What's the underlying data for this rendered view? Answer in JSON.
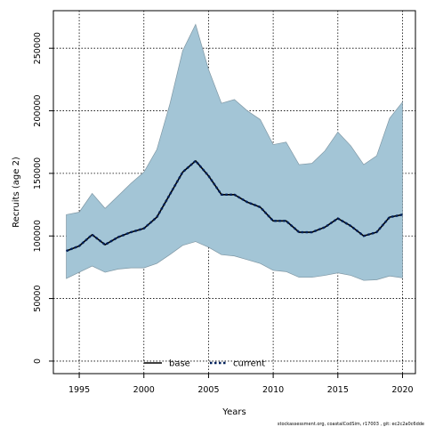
{
  "chart_data": {
    "type": "area",
    "xlabel": "Years",
    "ylabel": "Recruits (age 2)",
    "xlim": [
      1993,
      2021
    ],
    "ylim": [
      -10000,
      280000
    ],
    "x_ticks": [
      1995,
      2000,
      2005,
      2010,
      2015,
      2020
    ],
    "x_tick_labels": [
      "1995",
      "2000",
      "2005",
      "2010",
      "2015",
      "2020"
    ],
    "y_ticks": [
      0,
      50000,
      100000,
      150000,
      200000,
      250000
    ],
    "y_tick_labels": [
      "0",
      "50000",
      "100000",
      "150000",
      "200000",
      "250000"
    ],
    "grid": true,
    "legend_position": "bottom-center",
    "x": [
      1994,
      1995,
      1996,
      1997,
      1998,
      1999,
      2000,
      2001,
      2002,
      2003,
      2004,
      2005,
      2006,
      2007,
      2008,
      2009,
      2010,
      2011,
      2012,
      2013,
      2014,
      2015,
      2016,
      2017,
      2018,
      2019,
      2020
    ],
    "band": {
      "upper": [
        117000,
        119000,
        134000,
        122000,
        132000,
        142000,
        151000,
        169000,
        205000,
        248000,
        269000,
        233000,
        206000,
        209000,
        200000,
        193000,
        173000,
        175000,
        157000,
        158000,
        168000,
        183000,
        172000,
        157000,
        164000,
        194000,
        207000
      ],
      "lower": [
        66000,
        71000,
        76000,
        71000,
        73500,
        74500,
        74500,
        78000,
        85000,
        92500,
        95500,
        91000,
        85000,
        84000,
        81000,
        78000,
        72500,
        71500,
        67000,
        67000,
        68500,
        70500,
        68500,
        64500,
        65000,
        68000,
        66500
      ]
    },
    "series": [
      {
        "name": "base",
        "values": [
          88000,
          92000,
          101000,
          93000,
          99000,
          103000,
          106000,
          115000,
          133000,
          151000,
          160000,
          148000,
          133000,
          133000,
          127000,
          123000,
          112000,
          112000,
          103000,
          103000,
          107000,
          114000,
          108000,
          100000,
          103000,
          115000,
          117000
        ]
      },
      {
        "name": "current",
        "values": [
          88000,
          92000,
          101000,
          93000,
          99000,
          103000,
          106000,
          115000,
          133000,
          151000,
          160000,
          148000,
          133000,
          133000,
          127000,
          123000,
          112000,
          112000,
          103000,
          103000,
          107000,
          114000,
          108000,
          100000,
          103000,
          115000,
          117000
        ]
      }
    ],
    "footnote": "stockassessment.org,  coastalCodSim,  r17003 ,  git:  ec2c2a0c6dde"
  },
  "colors": {
    "band_fill": "#a3c5d6",
    "band_stroke": "#7f97a4",
    "base_line": "#000000",
    "current_line": "#00205b",
    "grid": "#000000",
    "axis": "#000000"
  }
}
